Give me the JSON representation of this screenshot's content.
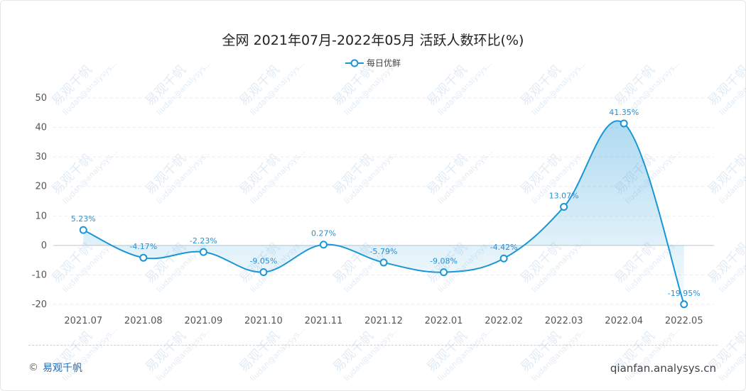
{
  "chart_data": {
    "type": "line",
    "title": "全网 2021年07月-2022年05月 活跃人数环比(%)",
    "categories": [
      "2021.07",
      "2021.08",
      "2021.09",
      "2021.10",
      "2021.11",
      "2021.12",
      "2022.01",
      "2022.02",
      "2022.03",
      "2022.04",
      "2022.05"
    ],
    "series": [
      {
        "name": "每日优鲜",
        "values": [
          5.23,
          -4.17,
          -2.23,
          -9.05,
          0.27,
          -5.79,
          -9.08,
          -4.42,
          13.07,
          41.35,
          -19.95
        ],
        "labels": [
          "5.23%",
          "-4.17%",
          "-2.23%",
          "-9.05%",
          "0.27%",
          "-5.79%",
          "-9.08%",
          "-4.42%",
          "13.07%",
          "41.35%",
          "-19.95%"
        ],
        "color": "#1a96d6"
      }
    ],
    "yticks": [
      50,
      40,
      30,
      20,
      10,
      0,
      -10,
      -20
    ],
    "ylim": [
      -20,
      50
    ],
    "grid": true,
    "legend": "top-center"
  },
  "footer": {
    "copyright": "©",
    "brand": "易观千帆",
    "site": "qianfan.analysys.cn"
  },
  "watermark": {
    "brand": "易观千帆",
    "text": "liudan@analysys..."
  }
}
